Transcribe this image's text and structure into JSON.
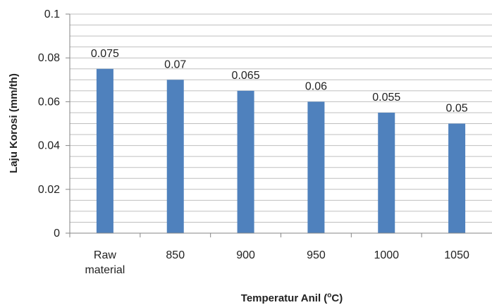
{
  "chart_data": {
    "type": "bar",
    "categories": [
      [
        "Raw",
        "material"
      ],
      [
        "850"
      ],
      [
        "900"
      ],
      [
        "950"
      ],
      [
        "1000"
      ],
      [
        "1050"
      ]
    ],
    "values": [
      0.075,
      0.07,
      0.065,
      0.06,
      0.055,
      0.05
    ],
    "data_labels": [
      "0.075",
      "0.07",
      "0.065",
      "0.06",
      "0.055",
      "0.05"
    ],
    "y_ticks": [
      0,
      0.02,
      0.04,
      0.06,
      0.08,
      0.1
    ],
    "y_tick_labels": [
      "0",
      "0.02",
      "0.04",
      "0.06",
      "0.08",
      "0.1"
    ],
    "ylim": [
      0,
      0.1
    ],
    "minor_grid_step": 0.005,
    "grid": true,
    "legend": "none",
    "xlabel_main": "Temperatur  Anil (",
    "xlabel_sup": "o",
    "xlabel_tail": "C)",
    "ylabel": "Laju Korosi (mm/th)",
    "colors": {
      "bar": "#4F81BD",
      "grid": "#BFBFBF",
      "axis": "#868686",
      "text": "#222222"
    }
  }
}
